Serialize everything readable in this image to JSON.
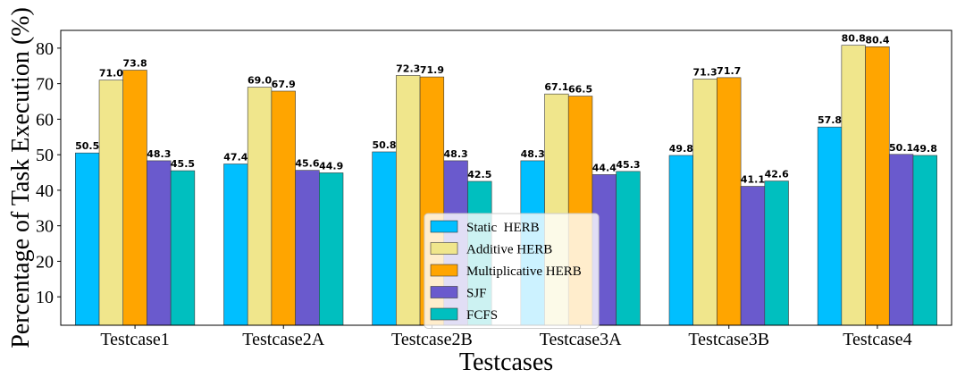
{
  "chart_data": {
    "type": "bar",
    "xlabel": "Testcases",
    "ylabel": "Percentage of Task Execution (%)",
    "categories": [
      "Testcase1",
      "Testcase2A",
      "Testcase2B",
      "Testcase3A",
      "Testcase3B",
      "Testcase4"
    ],
    "series": [
      {
        "name": "Static  HERB",
        "color": "#00bfff",
        "values": [
          50.5,
          47.4,
          50.8,
          48.3,
          49.8,
          57.8
        ]
      },
      {
        "name": "Additive HERB",
        "color": "#f0e68c",
        "values": [
          71.0,
          69.0,
          72.3,
          67.1,
          71.3,
          80.8
        ]
      },
      {
        "name": "Multiplicative HERB",
        "color": "#ffa500",
        "values": [
          73.8,
          67.9,
          71.9,
          66.5,
          71.7,
          80.4
        ]
      },
      {
        "name": "SJF",
        "color": "#6a5acd",
        "values": [
          48.3,
          45.6,
          48.3,
          44.4,
          41.1,
          50.1
        ]
      },
      {
        "name": "FCFS",
        "color": "#00bfbf",
        "values": [
          45.5,
          44.9,
          42.5,
          45.3,
          42.6,
          49.8
        ]
      }
    ],
    "yticks": [
      10,
      20,
      30,
      40,
      50,
      60,
      70,
      80
    ],
    "ylim": [
      2,
      85
    ],
    "legend_position": "lower-center",
    "grid": false
  }
}
